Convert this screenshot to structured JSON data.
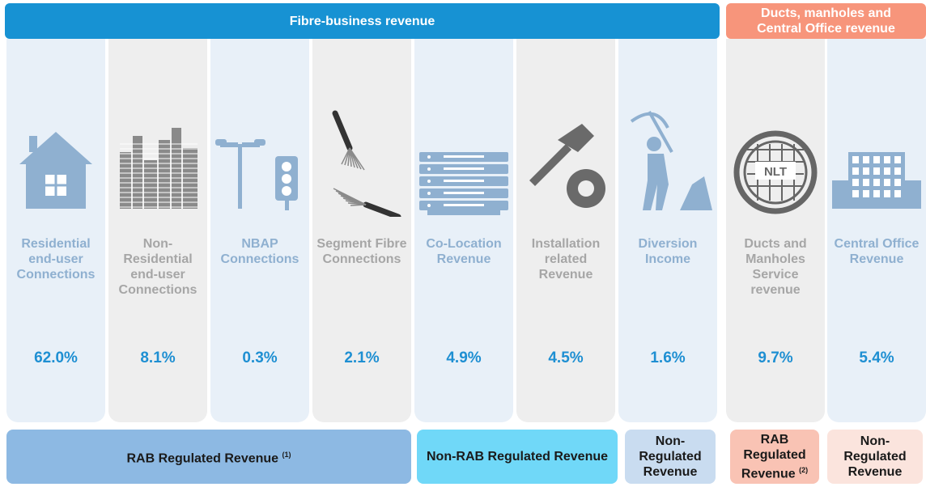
{
  "header": {
    "fibre": "Fibre-business revenue",
    "ducts": "Ducts, manholes and Central Office revenue"
  },
  "columns": [
    {
      "label": "Residential end-user Connections",
      "share": "62.0%"
    },
    {
      "label": "Non-Residential end-user Connections",
      "share": "8.1%"
    },
    {
      "label": "NBAP Connections",
      "share": "0.3%"
    },
    {
      "label": "Segment Fibre Connections",
      "share": "2.1%"
    },
    {
      "label": "Co-Location Revenue",
      "share": "4.9%"
    },
    {
      "label": "Installation related Revenue",
      "share": "4.5%"
    },
    {
      "label": "Diversion Income",
      "share": "1.6%"
    },
    {
      "label": "Ducts and Manholes Service revenue",
      "share": "9.7%",
      "icon_text": "NLT"
    },
    {
      "label": "Central Office Revenue",
      "share": "5.4%"
    }
  ],
  "footer": [
    {
      "label": "RAB Regulated Revenue",
      "note": "(1)"
    },
    {
      "label": "Non-RAB Regulated Revenue"
    },
    {
      "label": "Non-Regulated Revenue"
    },
    {
      "label": "RAB Regulated Revenue",
      "note": "(2)"
    },
    {
      "label": "Non-Regulated Revenue"
    }
  ]
}
